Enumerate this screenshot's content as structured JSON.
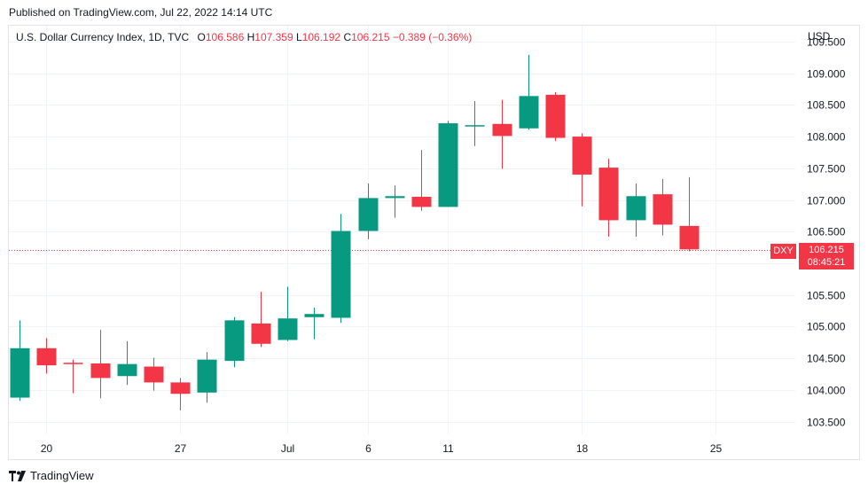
{
  "header": {
    "published": "Published on TradingView.com, Jul 22, 2022 14:14 UTC"
  },
  "legend": {
    "title": "U.S. Dollar Currency Index, 1D, TVC",
    "o_label": "O",
    "o_value": "106.586",
    "h_label": "H",
    "h_value": "107.359",
    "l_label": "L",
    "l_value": "106.192",
    "c_label": "C",
    "c_value": "106.215",
    "change": "−0.389 (−0.36%)"
  },
  "currency": "USD",
  "price_tag": {
    "ticker": "DXY",
    "price": "106.215",
    "countdown": "08:45:21"
  },
  "footer": {
    "brand": "TradingView"
  },
  "colors": {
    "up": "#089981",
    "down": "#f23645",
    "grid": "#f0f3fa",
    "axis_text": "#131722"
  },
  "chart_data": {
    "type": "candlestick",
    "title": "U.S. Dollar Currency Index, 1D, TVC",
    "ylim": [
      103.3,
      109.75
    ],
    "y_ticks": [
      "103.500",
      "104.000",
      "104.500",
      "105.000",
      "105.500",
      "106.000",
      "106.500",
      "107.000",
      "107.500",
      "108.000",
      "108.500",
      "109.000",
      "109.500"
    ],
    "x_tick_labels": [
      {
        "label": "20",
        "index": 1
      },
      {
        "label": "27",
        "index": 6
      },
      {
        "label": "Jul",
        "index": 10
      },
      {
        "label": "6",
        "index": 13
      },
      {
        "label": "11",
        "index": 16
      },
      {
        "label": "18",
        "index": 21
      },
      {
        "label": "25",
        "index": 26
      }
    ],
    "last_price": 106.215,
    "candles": [
      {
        "o": 103.88,
        "h": 105.1,
        "l": 103.83,
        "c": 104.66
      },
      {
        "o": 104.66,
        "h": 104.82,
        "l": 104.26,
        "c": 104.39
      },
      {
        "o": 104.43,
        "h": 104.48,
        "l": 103.95,
        "c": 104.41
      },
      {
        "o": 104.42,
        "h": 104.95,
        "l": 103.87,
        "c": 104.19
      },
      {
        "o": 104.22,
        "h": 104.77,
        "l": 104.08,
        "c": 104.41
      },
      {
        "o": 104.37,
        "h": 104.51,
        "l": 103.99,
        "c": 104.12
      },
      {
        "o": 104.12,
        "h": 104.19,
        "l": 103.68,
        "c": 103.94
      },
      {
        "o": 103.96,
        "h": 104.6,
        "l": 103.8,
        "c": 104.48
      },
      {
        "o": 104.46,
        "h": 105.15,
        "l": 104.36,
        "c": 105.1
      },
      {
        "o": 105.05,
        "h": 105.55,
        "l": 104.68,
        "c": 104.73
      },
      {
        "o": 104.79,
        "h": 105.63,
        "l": 104.77,
        "c": 105.13
      },
      {
        "o": 105.15,
        "h": 105.3,
        "l": 104.8,
        "c": 105.2
      },
      {
        "o": 105.14,
        "h": 106.78,
        "l": 105.06,
        "c": 106.51
      },
      {
        "o": 106.51,
        "h": 107.26,
        "l": 106.38,
        "c": 107.03
      },
      {
        "o": 107.03,
        "h": 107.23,
        "l": 106.72,
        "c": 107.06
      },
      {
        "o": 107.05,
        "h": 107.79,
        "l": 106.83,
        "c": 106.89
      },
      {
        "o": 106.89,
        "h": 108.25,
        "l": 106.89,
        "c": 108.21
      },
      {
        "o": 108.18,
        "h": 108.56,
        "l": 107.85,
        "c": 108.18
      },
      {
        "o": 108.2,
        "h": 108.58,
        "l": 107.49,
        "c": 108.01
      },
      {
        "o": 108.13,
        "h": 109.29,
        "l": 108.11,
        "c": 108.64
      },
      {
        "o": 108.66,
        "h": 108.7,
        "l": 107.93,
        "c": 107.98
      },
      {
        "o": 108.0,
        "h": 108.05,
        "l": 106.9,
        "c": 107.4
      },
      {
        "o": 107.51,
        "h": 107.65,
        "l": 106.42,
        "c": 106.68
      },
      {
        "o": 106.68,
        "h": 107.26,
        "l": 106.42,
        "c": 107.06
      },
      {
        "o": 107.09,
        "h": 107.33,
        "l": 106.44,
        "c": 106.61
      },
      {
        "o": 106.59,
        "h": 107.36,
        "l": 106.19,
        "c": 106.22
      }
    ]
  }
}
